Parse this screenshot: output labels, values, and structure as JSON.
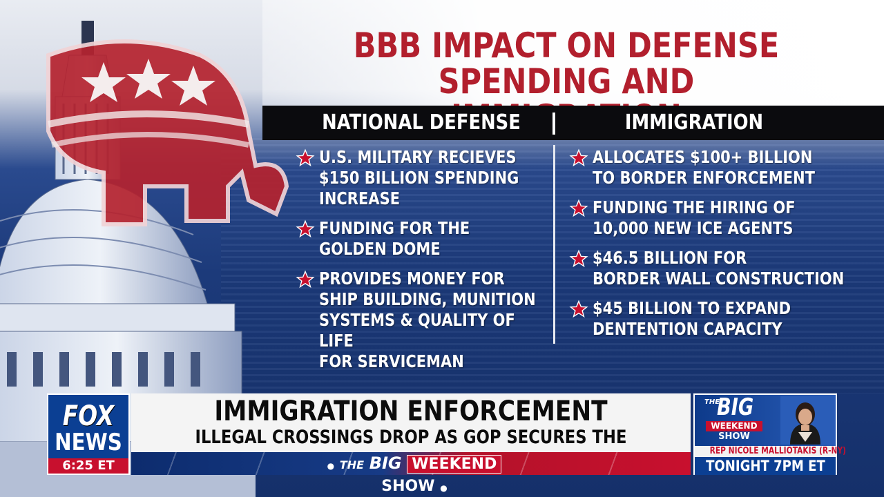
{
  "graphic": {
    "headline": "BBB IMPACT ON DEFENSE\nSPENDING AND IMMIGRATION",
    "columns": [
      {
        "heading": "NATIONAL DEFENSE",
        "bullets": [
          "U.S. MILITARY RECIEVES\n$150 BILLION SPENDING\nINCREASE",
          "FUNDING FOR THE\nGOLDEN DOME",
          "PROVIDES MONEY FOR\nSHIP BUILDING, MUNITION\nSYSTEMS & QUALITY OF LIFE\nFOR SERVICEMAN"
        ]
      },
      {
        "heading": "IMMIGRATION",
        "bullets": [
          "ALLOCATES $100+ BILLION\nTO BORDER ENFORCEMENT",
          "FUNDING THE HIRING OF\n10,000 NEW ICE AGENTS",
          "$46.5 BILLION FOR\nBORDER WALL CONSTRUCTION",
          "$45 BILLION TO EXPAND\nDENTENTION CAPACITY"
        ]
      }
    ],
    "colors": {
      "headline_red": "#b21f2d",
      "star_red": "#c8102e",
      "panel_blue": "#1c3a7a",
      "header_black": "#0b0b0e"
    }
  },
  "lower_third": {
    "logo_top": "FOX",
    "logo_bottom": "NEWS",
    "time": "6:25 ET",
    "title": "IMMIGRATION ENFORCEMENT",
    "subtitle": "ILLEGAL CROSSINGS DROP AS GOP SECURES THE BORDER",
    "show_the": "THE",
    "show_big": "BIG",
    "show_weekend": "WEEKEND",
    "show_show": "SHOW"
  },
  "promo": {
    "the": "THE",
    "big": "BIG",
    "weekend": "WEEKEND",
    "show": "SHOW",
    "guest": "REP NICOLE MALLIOTAKIS (R-NY)",
    "time": "TONIGHT 7PM ET"
  }
}
